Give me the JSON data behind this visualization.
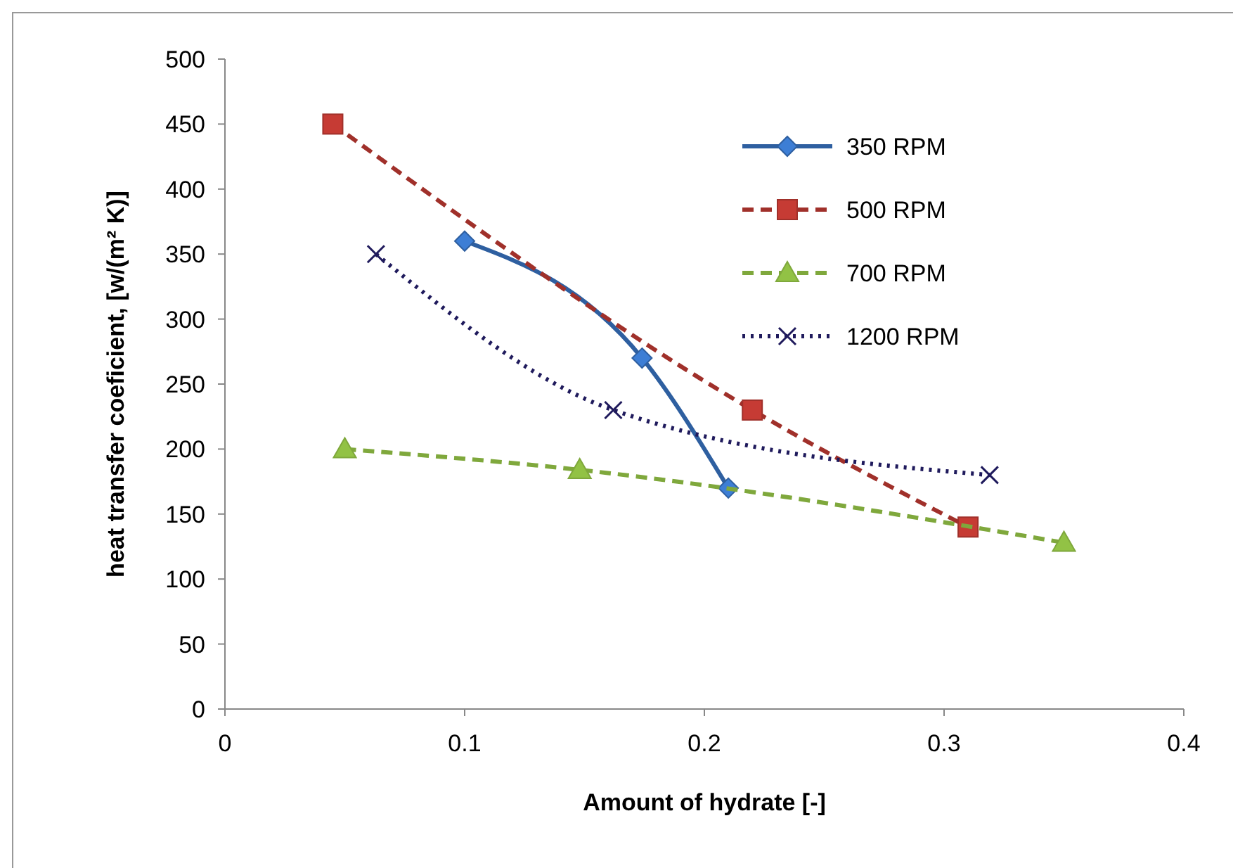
{
  "chart_data": {
    "type": "line",
    "xlabel": "Amount of hydrate [-]",
    "ylabel": "heat transfer coeficient, [w/(m² K)]",
    "xlim": [
      0,
      0.4
    ],
    "xticks": [
      0,
      0.1,
      0.2,
      0.3,
      0.4
    ],
    "ylim": [
      0,
      500
    ],
    "yticks": [
      0,
      50,
      100,
      150,
      200,
      250,
      300,
      350,
      400,
      450,
      500
    ],
    "grid": false,
    "legend": "top right",
    "series": [
      {
        "name": "350 RPM",
        "color": "#2e5fa0",
        "marker": "diamond",
        "line_style": "solid",
        "x": [
          0.1,
          0.174,
          0.21
        ],
        "values": [
          360,
          270,
          170
        ]
      },
      {
        "name": "500 RPM",
        "color": "#a0302a",
        "marker": "square",
        "line_style": "dashed",
        "x": [
          0.045,
          0.22,
          0.31
        ],
        "values": [
          450,
          230,
          140
        ]
      },
      {
        "name": "700 RPM",
        "color": "#7fa83c",
        "marker": "triangle",
        "line_style": "dashed",
        "x": [
          0.05,
          0.148,
          0.35
        ],
        "values": [
          200,
          184,
          128
        ]
      },
      {
        "name": "1200 RPM",
        "color": "#1f1a5c",
        "marker": "cross",
        "line_style": "dotted",
        "x": [
          0.063,
          0.162,
          0.319
        ],
        "values": [
          350,
          230,
          180
        ]
      }
    ]
  }
}
